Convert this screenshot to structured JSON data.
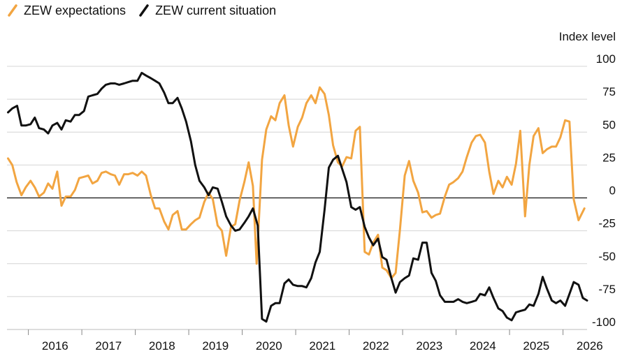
{
  "chart_data": {
    "type": "line",
    "title": "",
    "xlabel": "",
    "ylabel": "Index level",
    "ylim": [
      -100,
      100
    ],
    "yticks": [
      "100",
      "75",
      "50",
      "25",
      "0",
      "-25",
      "-50",
      "-75",
      "-100"
    ],
    "xlim": [
      2015.6,
      2026.45
    ],
    "xticks": [
      "2016",
      "2017",
      "2018",
      "2019",
      "2020",
      "2021",
      "2022",
      "2023",
      "2024",
      "2025",
      "2026"
    ],
    "grid": true,
    "legend": "top-left",
    "series": [
      {
        "name": "ZEW expectations",
        "color": "#f2a541",
        "points": [
          [
            2015.62,
            30
          ],
          [
            2015.7,
            25
          ],
          [
            2015.78,
            12
          ],
          [
            2015.87,
            2
          ],
          [
            2015.95,
            8
          ],
          [
            2016.04,
            13
          ],
          [
            2016.12,
            8
          ],
          [
            2016.2,
            1
          ],
          [
            2016.29,
            4
          ],
          [
            2016.37,
            11
          ],
          [
            2016.45,
            7
          ],
          [
            2016.54,
            20
          ],
          [
            2016.62,
            -6
          ],
          [
            2016.7,
            1
          ],
          [
            2016.79,
            1
          ],
          [
            2016.87,
            6
          ],
          [
            2016.95,
            15
          ],
          [
            2017.04,
            16
          ],
          [
            2017.12,
            17
          ],
          [
            2017.2,
            11
          ],
          [
            2017.29,
            13
          ],
          [
            2017.37,
            19
          ],
          [
            2017.45,
            20
          ],
          [
            2017.54,
            18
          ],
          [
            2017.62,
            17
          ],
          [
            2017.7,
            10
          ],
          [
            2017.79,
            18
          ],
          [
            2017.87,
            18
          ],
          [
            2017.95,
            19
          ],
          [
            2018.04,
            17
          ],
          [
            2018.12,
            20
          ],
          [
            2018.2,
            17
          ],
          [
            2018.29,
            2
          ],
          [
            2018.37,
            -8
          ],
          [
            2018.45,
            -8
          ],
          [
            2018.54,
            -18
          ],
          [
            2018.62,
            -24
          ],
          [
            2018.7,
            -13
          ],
          [
            2018.79,
            -10
          ],
          [
            2018.87,
            -24
          ],
          [
            2018.95,
            -24
          ],
          [
            2019.04,
            -20
          ],
          [
            2019.12,
            -17
          ],
          [
            2019.2,
            -15
          ],
          [
            2019.29,
            -3
          ],
          [
            2019.37,
            4
          ],
          [
            2019.45,
            -1
          ],
          [
            2019.54,
            -21
          ],
          [
            2019.62,
            -25
          ],
          [
            2019.7,
            -44
          ],
          [
            2019.79,
            -22
          ],
          [
            2019.87,
            -20
          ],
          [
            2019.95,
            -2
          ],
          [
            2020.04,
            12
          ],
          [
            2020.12,
            27
          ],
          [
            2020.2,
            9
          ],
          [
            2020.27,
            -50
          ],
          [
            2020.37,
            29
          ],
          [
            2020.45,
            52
          ],
          [
            2020.54,
            62
          ],
          [
            2020.62,
            59
          ],
          [
            2020.7,
            72
          ],
          [
            2020.79,
            78
          ],
          [
            2020.87,
            55
          ],
          [
            2020.95,
            39
          ],
          [
            2021.04,
            54
          ],
          [
            2021.12,
            61
          ],
          [
            2021.2,
            72
          ],
          [
            2021.29,
            78
          ],
          [
            2021.37,
            72
          ],
          [
            2021.45,
            84
          ],
          [
            2021.54,
            79
          ],
          [
            2021.62,
            63
          ],
          [
            2021.7,
            40
          ],
          [
            2021.79,
            27
          ],
          [
            2021.87,
            24
          ],
          [
            2021.95,
            31
          ],
          [
            2022.04,
            30
          ],
          [
            2022.12,
            51
          ],
          [
            2022.2,
            54
          ],
          [
            2022.29,
            -41
          ],
          [
            2022.37,
            -43
          ],
          [
            2022.45,
            -34
          ],
          [
            2022.54,
            -28
          ],
          [
            2022.62,
            -53
          ],
          [
            2022.7,
            -55
          ],
          [
            2022.79,
            -61
          ],
          [
            2022.87,
            -57
          ],
          [
            2022.95,
            -24
          ],
          [
            2023.04,
            17
          ],
          [
            2023.12,
            28
          ],
          [
            2023.2,
            13
          ],
          [
            2023.29,
            4
          ],
          [
            2023.37,
            -11
          ],
          [
            2023.45,
            -10
          ],
          [
            2023.54,
            -15
          ],
          [
            2023.62,
            -13
          ],
          [
            2023.7,
            -12
          ],
          [
            2023.79,
            1
          ],
          [
            2023.87,
            10
          ],
          [
            2023.95,
            12
          ],
          [
            2024.04,
            15
          ],
          [
            2024.12,
            20
          ],
          [
            2024.2,
            31
          ],
          [
            2024.29,
            42
          ],
          [
            2024.37,
            47
          ],
          [
            2024.45,
            48
          ],
          [
            2024.54,
            42
          ],
          [
            2024.62,
            20
          ],
          [
            2024.7,
            3
          ],
          [
            2024.79,
            13
          ],
          [
            2024.87,
            8
          ],
          [
            2024.95,
            16
          ],
          [
            2025.04,
            10
          ],
          [
            2025.12,
            26
          ],
          [
            2025.2,
            51
          ],
          [
            2025.29,
            -14
          ],
          [
            2025.37,
            25
          ],
          [
            2025.45,
            47
          ],
          [
            2025.54,
            53
          ],
          [
            2025.62,
            34
          ],
          [
            2025.7,
            37
          ],
          [
            2025.79,
            39
          ],
          [
            2025.87,
            39
          ],
          [
            2025.95,
            46
          ],
          [
            2026.04,
            59
          ],
          [
            2026.12,
            58
          ],
          [
            2026.2,
            -1
          ],
          [
            2026.29,
            -17
          ],
          [
            2026.4,
            -8
          ]
        ]
      },
      {
        "name": "ZEW current situation",
        "color": "#111111",
        "points": [
          [
            2015.62,
            65
          ],
          [
            2015.7,
            68
          ],
          [
            2015.79,
            70
          ],
          [
            2015.87,
            55
          ],
          [
            2015.95,
            55
          ],
          [
            2016.04,
            56
          ],
          [
            2016.12,
            61
          ],
          [
            2016.2,
            53
          ],
          [
            2016.29,
            52
          ],
          [
            2016.37,
            49
          ],
          [
            2016.45,
            55
          ],
          [
            2016.54,
            57
          ],
          [
            2016.62,
            52
          ],
          [
            2016.7,
            59
          ],
          [
            2016.79,
            58
          ],
          [
            2016.87,
            63
          ],
          [
            2016.95,
            63
          ],
          [
            2017.04,
            66
          ],
          [
            2017.12,
            77
          ],
          [
            2017.2,
            78
          ],
          [
            2017.29,
            79
          ],
          [
            2017.37,
            83
          ],
          [
            2017.45,
            86
          ],
          [
            2017.54,
            87
          ],
          [
            2017.62,
            87
          ],
          [
            2017.7,
            86
          ],
          [
            2017.79,
            87
          ],
          [
            2017.87,
            88
          ],
          [
            2017.95,
            89
          ],
          [
            2018.04,
            89
          ],
          [
            2018.12,
            95
          ],
          [
            2018.2,
            93
          ],
          [
            2018.29,
            91
          ],
          [
            2018.37,
            89
          ],
          [
            2018.45,
            87
          ],
          [
            2018.54,
            80
          ],
          [
            2018.62,
            72
          ],
          [
            2018.7,
            72
          ],
          [
            2018.79,
            76
          ],
          [
            2018.87,
            68
          ],
          [
            2018.95,
            58
          ],
          [
            2019.04,
            43
          ],
          [
            2019.12,
            25
          ],
          [
            2019.2,
            13
          ],
          [
            2019.29,
            8
          ],
          [
            2019.37,
            2
          ],
          [
            2019.45,
            8
          ],
          [
            2019.54,
            7
          ],
          [
            2019.62,
            -3
          ],
          [
            2019.7,
            -14
          ],
          [
            2019.79,
            -21
          ],
          [
            2019.87,
            -25
          ],
          [
            2019.95,
            -24
          ],
          [
            2020.04,
            -19
          ],
          [
            2020.12,
            -14
          ],
          [
            2020.2,
            -8
          ],
          [
            2020.29,
            -21
          ],
          [
            2020.37,
            -92
          ],
          [
            2020.45,
            -94
          ],
          [
            2020.54,
            -82
          ],
          [
            2020.62,
            -80
          ],
          [
            2020.7,
            -80
          ],
          [
            2020.79,
            -65
          ],
          [
            2020.87,
            -62
          ],
          [
            2020.95,
            -66
          ],
          [
            2021.04,
            -67
          ],
          [
            2021.12,
            -67
          ],
          [
            2021.2,
            -68
          ],
          [
            2021.29,
            -61
          ],
          [
            2021.37,
            -49
          ],
          [
            2021.45,
            -41
          ],
          [
            2021.54,
            -9
          ],
          [
            2021.62,
            23
          ],
          [
            2021.7,
            29
          ],
          [
            2021.79,
            32
          ],
          [
            2021.87,
            22
          ],
          [
            2021.95,
            12
          ],
          [
            2022.04,
            -7
          ],
          [
            2022.12,
            -9
          ],
          [
            2022.2,
            -7
          ],
          [
            2022.29,
            -22
          ],
          [
            2022.37,
            -30
          ],
          [
            2022.45,
            -36
          ],
          [
            2022.54,
            -31
          ],
          [
            2022.62,
            -45
          ],
          [
            2022.7,
            -47
          ],
          [
            2022.79,
            -61
          ],
          [
            2022.87,
            -72
          ],
          [
            2022.95,
            -64
          ],
          [
            2023.04,
            -61
          ],
          [
            2023.12,
            -59
          ],
          [
            2023.2,
            -46
          ],
          [
            2023.29,
            -47
          ],
          [
            2023.37,
            -34
          ],
          [
            2023.45,
            -34
          ],
          [
            2023.54,
            -57
          ],
          [
            2023.62,
            -63
          ],
          [
            2023.7,
            -74
          ],
          [
            2023.79,
            -79
          ],
          [
            2023.87,
            -79
          ],
          [
            2023.95,
            -79
          ],
          [
            2024.04,
            -77
          ],
          [
            2024.12,
            -79
          ],
          [
            2024.2,
            -80
          ],
          [
            2024.29,
            -79
          ],
          [
            2024.37,
            -78
          ],
          [
            2024.45,
            -73
          ],
          [
            2024.54,
            -74
          ],
          [
            2024.62,
            -68
          ],
          [
            2024.7,
            -76
          ],
          [
            2024.79,
            -84
          ],
          [
            2024.87,
            -86
          ],
          [
            2024.95,
            -91
          ],
          [
            2025.04,
            -93
          ],
          [
            2025.12,
            -87
          ],
          [
            2025.2,
            -86
          ],
          [
            2025.29,
            -85
          ],
          [
            2025.37,
            -81
          ],
          [
            2025.45,
            -82
          ],
          [
            2025.54,
            -73
          ],
          [
            2025.62,
            -60
          ],
          [
            2025.7,
            -69
          ],
          [
            2025.79,
            -78
          ],
          [
            2025.87,
            -80
          ],
          [
            2025.95,
            -78
          ],
          [
            2026.04,
            -82
          ],
          [
            2026.12,
            -73
          ],
          [
            2026.2,
            -64
          ],
          [
            2026.29,
            -66
          ],
          [
            2026.37,
            -76
          ],
          [
            2026.45,
            -78
          ]
        ]
      }
    ]
  }
}
